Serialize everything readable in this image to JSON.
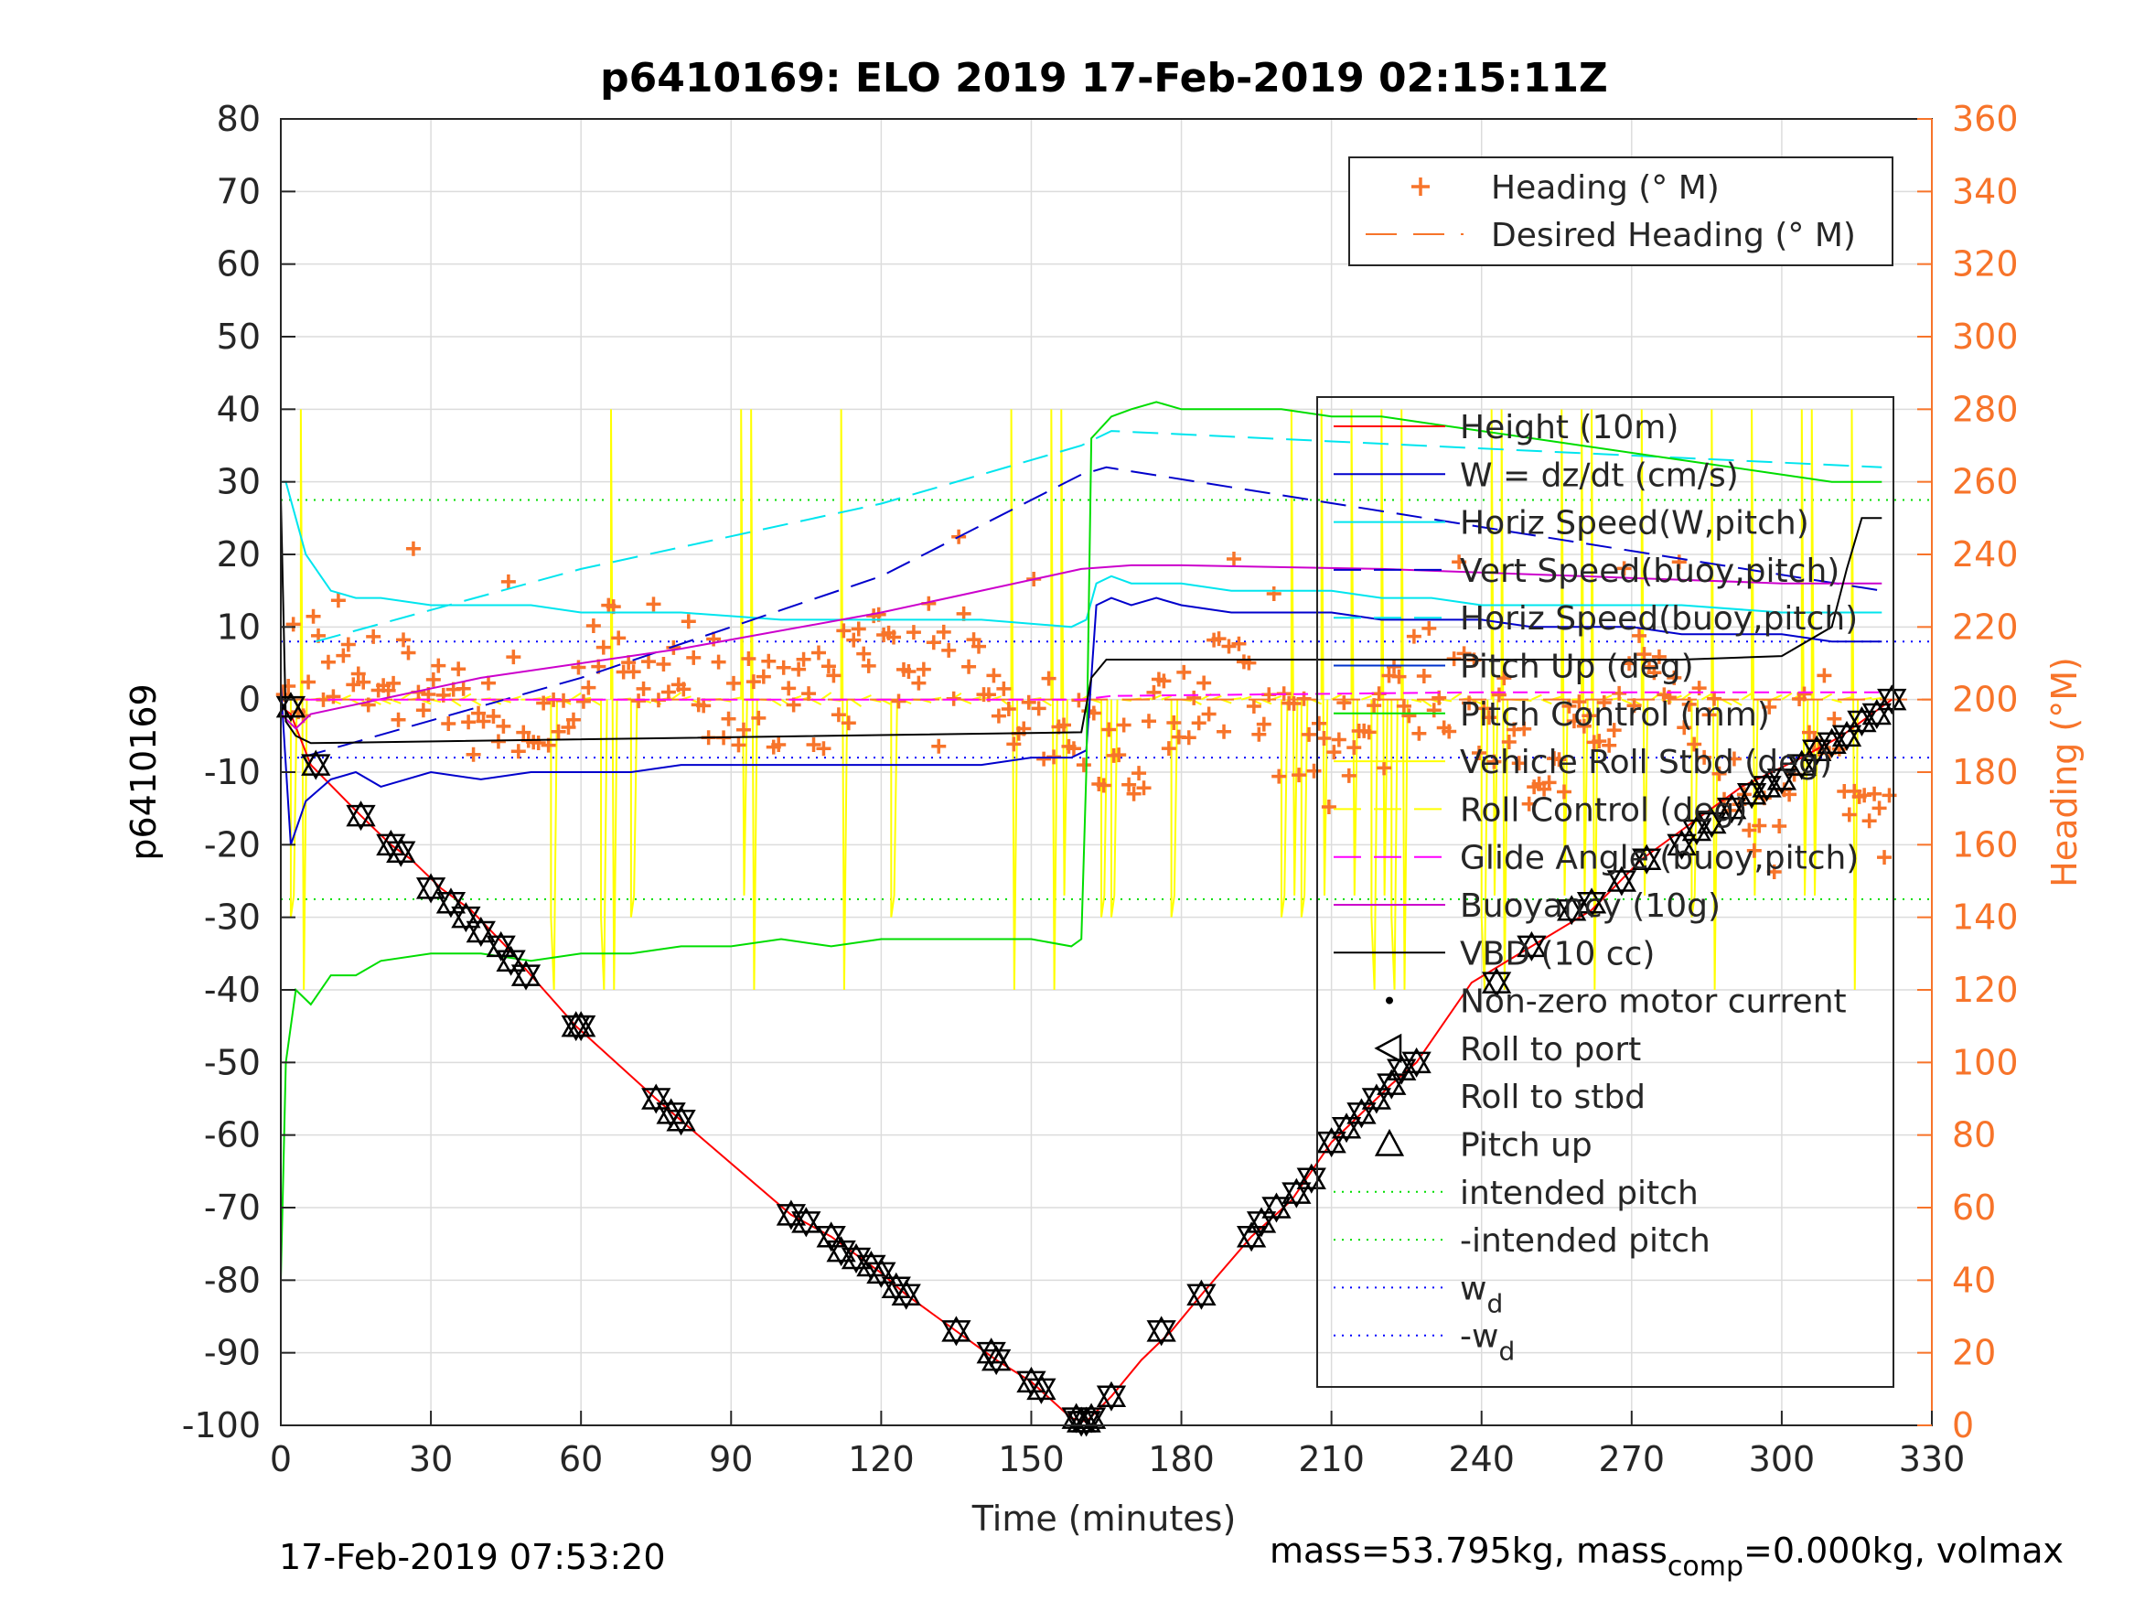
{
  "chart_data": {
    "type": "line",
    "title": "p6410169: ELO 2019 17-Feb-2019 02:15:11Z",
    "xlabel": "Time (minutes)",
    "ylabel": "p6410169",
    "ylabel_right": "Heading (°M)",
    "xlim": [
      0,
      330
    ],
    "ylim": [
      -100,
      80
    ],
    "ylim_right": [
      0,
      360
    ],
    "x_ticks": [
      "0",
      "30",
      "60",
      "90",
      "120",
      "150",
      "180",
      "210",
      "240",
      "270",
      "300",
      "330"
    ],
    "y_ticks": [
      "80",
      "70",
      "60",
      "50",
      "40",
      "30",
      "20",
      "10",
      "0",
      "-10",
      "-20",
      "-30",
      "-40",
      "-50",
      "-60",
      "-70",
      "-80",
      "-90",
      "-100"
    ],
    "y_ticks_right": [
      "360",
      "340",
      "320",
      "300",
      "280",
      "260",
      "240",
      "220",
      "200",
      "180",
      "160",
      "140",
      "120",
      "100",
      "80",
      "60",
      "40",
      "20",
      "0"
    ],
    "grid": true,
    "accent_color": "#f7742a",
    "footer_left": "17-Feb-2019 07:53:20",
    "footer_right_a": "mass=53.795kg, mass",
    "footer_right_sub": "comp",
    "footer_right_b": "=0.000kg, volmax",
    "legend_heading": [
      {
        "label": "Heading (° M)",
        "color": "#f7742a",
        "style": "plus"
      },
      {
        "label": "Desired Heading (° M)",
        "color": "#f7742a",
        "style": "dashed"
      }
    ],
    "legend_main": [
      {
        "label": "Height (10m)",
        "color": "#ff0000",
        "style": "solid"
      },
      {
        "label": "W = dz/dt (cm/s)",
        "color": "#0000cc",
        "style": "solid"
      },
      {
        "label": "Horiz Speed(W,pitch)",
        "color": "#00e5ee",
        "style": "solid"
      },
      {
        "label": "Vert Speed(buoy,pitch)",
        "color": "#0000cc",
        "style": "dashed"
      },
      {
        "label": "Horiz Speed(buoy,pitch)",
        "color": "#00e5ee",
        "style": "dashed"
      },
      {
        "label": "Pitch Up (deg)",
        "color": "#0033cc",
        "style": "solid"
      },
      {
        "label": "Pitch Control (mm)",
        "color": "#00dd00",
        "style": "solid"
      },
      {
        "label": "Vehicle Roll Stbd (deg)",
        "color": "#ffff00",
        "style": "solid"
      },
      {
        "label": "Roll Control (deg)",
        "color": "#ffff00",
        "style": "dashed"
      },
      {
        "label": "Glide Angle (buoy,pitch)",
        "color": "#ff00ff",
        "style": "dashed"
      },
      {
        "label": "Buoyancy (10g)",
        "color": "#cc00cc",
        "style": "solid"
      },
      {
        "label": "VBD (10 cc)",
        "color": "#000000",
        "style": "solid"
      },
      {
        "label": "Non-zero motor current",
        "color": "#000000",
        "style": "dot"
      },
      {
        "label": "Roll to port",
        "color": "#000000",
        "style": "tri-left"
      },
      {
        "label": "Roll to stbd",
        "color": "#000000",
        "style": "none"
      },
      {
        "label": "Pitch up",
        "color": "#000000",
        "style": "tri-up"
      },
      {
        "label": "intended pitch",
        "color": "#00dd00",
        "style": "dotted"
      },
      {
        "label": "-intended pitch",
        "color": "#00dd00",
        "style": "dotted"
      },
      {
        "label": "w",
        "sub": "d",
        "color": "#0000ff",
        "style": "dotted"
      },
      {
        "label": "-w",
        "sub": "d",
        "color": "#0000ff",
        "style": "dotted"
      }
    ],
    "series": [
      {
        "name": "Height (10m)",
        "color": "#ff0000",
        "x": [
          0,
          2,
          6,
          16,
          22,
          26,
          32,
          38,
          45,
          50,
          59,
          75,
          80,
          102,
          110,
          120,
          125,
          135,
          143,
          150,
          158,
          161,
          166,
          172,
          178,
          184,
          194,
          202,
          210,
          216,
          222,
          227,
          238,
          250,
          262,
          272,
          282,
          292,
          304,
          312,
          318,
          322
        ],
        "y": [
          -1,
          -2,
          -9,
          -16,
          -20,
          -22,
          -26,
          -29,
          -34,
          -38,
          -45,
          -55,
          -58,
          -71,
          -74,
          -79,
          -82,
          -87,
          -91,
          -94,
          -99,
          -99.5,
          -96,
          -91,
          -87,
          -82,
          -74,
          -69,
          -61,
          -57,
          -53,
          -50,
          -39,
          -34,
          -29,
          -22,
          -17,
          -12,
          -8,
          -5,
          -2,
          0
        ]
      },
      {
        "name": "W = dz/dt (cm/s)",
        "color": "#0000cc",
        "x": [
          0,
          2,
          5,
          10,
          15,
          20,
          30,
          40,
          50,
          60,
          70,
          80,
          90,
          100,
          110,
          120,
          130,
          140,
          150,
          158,
          161,
          163,
          166,
          170,
          175,
          180,
          190,
          200,
          210,
          220,
          230,
          240,
          250,
          260,
          270,
          280,
          290,
          300,
          310,
          315,
          320
        ],
        "y": [
          2,
          -20,
          -14,
          -11,
          -10,
          -12,
          -10,
          -11,
          -10,
          -10,
          -10,
          -9,
          -9,
          -9,
          -9,
          -9,
          -9,
          -9,
          -8,
          -8,
          -7,
          13,
          14,
          13,
          14,
          13,
          12,
          12,
          12,
          11,
          11,
          11,
          10,
          10,
          10,
          9,
          9,
          9,
          8,
          8,
          8
        ]
      },
      {
        "name": "Horiz Speed(W,pitch)",
        "color": "#00e5ee",
        "x": [
          0,
          1,
          3,
          5,
          10,
          15,
          20,
          30,
          40,
          50,
          60,
          70,
          80,
          100,
          120,
          140,
          158,
          161,
          163,
          166,
          170,
          180,
          190,
          200,
          210,
          220,
          230,
          240,
          260,
          280,
          300,
          310,
          320
        ],
        "y": [
          30,
          30,
          25,
          20,
          15,
          14,
          14,
          13,
          13,
          13,
          12,
          12,
          12,
          11,
          11,
          11,
          10,
          11,
          16,
          17,
          16,
          16,
          15,
          15,
          15,
          14,
          14,
          13,
          13,
          13,
          12,
          12,
          12
        ]
      },
      {
        "name": "Vert Speed(buoy,pitch)",
        "color": "#0000cc",
        "dash": "28 14",
        "x": [
          4,
          60,
          120,
          160,
          165,
          320
        ],
        "y": [
          -8,
          3,
          17,
          31,
          32,
          15
        ]
      },
      {
        "name": "Horiz Speed(buoy,pitch)",
        "color": "#00e5ee",
        "dash": "28 14",
        "x": [
          7,
          60,
          120,
          160,
          166,
          320
        ],
        "y": [
          8,
          18,
          27,
          35,
          37,
          32
        ]
      },
      {
        "name": "Pitch Control (mm)",
        "color": "#00dd00",
        "x": [
          0,
          1,
          3,
          6,
          10,
          15,
          20,
          30,
          40,
          50,
          60,
          70,
          80,
          90,
          100,
          110,
          120,
          130,
          140,
          150,
          158,
          160,
          161,
          162,
          166,
          170,
          175,
          180,
          190,
          200,
          210,
          220,
          230,
          240,
          260,
          280,
          300,
          310,
          320
        ],
        "y": [
          -80,
          -50,
          -40,
          -42,
          -38,
          -38,
          -36,
          -35,
          -35,
          -36,
          -35,
          -35,
          -34,
          -34,
          -33,
          -34,
          -33,
          -33,
          -33,
          -33,
          -34,
          -33,
          -10,
          36,
          39,
          40,
          41,
          40,
          40,
          40,
          39,
          39,
          38,
          37,
          35,
          33,
          31,
          30,
          30
        ]
      },
      {
        "name": "Buoyancy (10g)",
        "color": "#cc00cc",
        "x": [
          0,
          3,
          6,
          40,
          80,
          120,
          160,
          170,
          180,
          220,
          260,
          300,
          320
        ],
        "y": [
          -2,
          -4,
          -2,
          3,
          7,
          12,
          18,
          18.5,
          18.5,
          18,
          17,
          16,
          16
        ]
      },
      {
        "name": "Glide Angle (buoy,pitch)",
        "color": "#ff00ff",
        "dash": "16 8",
        "x": [
          5,
          60,
          120,
          160,
          166,
          240,
          320
        ],
        "y": [
          0,
          0,
          0,
          0,
          0.5,
          1,
          1
        ]
      },
      {
        "name": "VBD (10 cc)",
        "color": "#000000",
        "x": [
          0,
          1,
          3,
          6,
          160,
          162,
          165,
          240,
          280,
          300,
          310,
          313,
          316,
          320
        ],
        "y": [
          28,
          -3,
          -5,
          -6,
          -4.5,
          3,
          5.5,
          5.5,
          5.5,
          6,
          10,
          18,
          25,
          25
        ]
      }
    ],
    "intended_pitch": 27.5,
    "w_d": 8,
    "pitch_markers": {
      "x": [
        2,
        7,
        16,
        22,
        24,
        30,
        34,
        37,
        40,
        44,
        46,
        49,
        59,
        60,
        75,
        78,
        80,
        102,
        105,
        110,
        112,
        115,
        118,
        120,
        123,
        125,
        135,
        142,
        143,
        150,
        152,
        159,
        160,
        161,
        162,
        166,
        176,
        184,
        194,
        196,
        199,
        203,
        206,
        210,
        213,
        216,
        219,
        222,
        224,
        227,
        243,
        250,
        258,
        262,
        268,
        273,
        280,
        283,
        286,
        290,
        294,
        297,
        300,
        304,
        307,
        310,
        313,
        316,
        319,
        322
      ],
      "y": [
        -1,
        -9,
        -16,
        -20,
        -21,
        -26,
        -28,
        -30,
        -32,
        -34,
        -36,
        -38,
        -45,
        -45,
        -55,
        -57,
        -58,
        -71,
        -72,
        -74,
        -76,
        -77,
        -78,
        -79,
        -81,
        -82,
        -87,
        -90,
        -91,
        -94,
        -95,
        -99,
        -99.5,
        -99.5,
        -99,
        -96,
        -87,
        -82,
        -74,
        -72,
        -70,
        -68,
        -66,
        -61,
        -59,
        -57,
        -55,
        -53,
        -51,
        -50,
        -39,
        -34,
        -29,
        -28,
        -25,
        -22,
        -20,
        -18,
        -17,
        -15,
        -13,
        -12,
        -11,
        -9,
        -7,
        -6,
        -5,
        -3,
        -2,
        0
      ]
    }
  }
}
